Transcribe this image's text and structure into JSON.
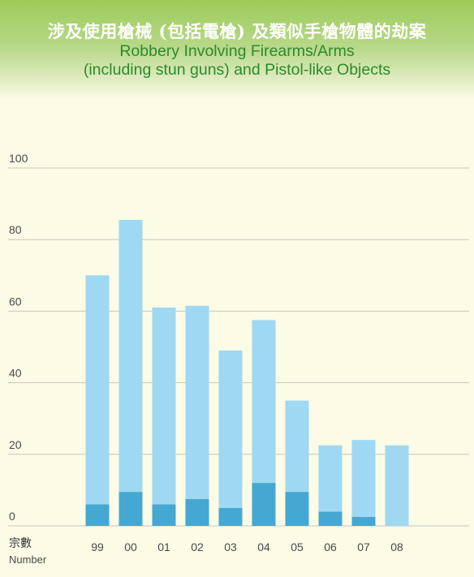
{
  "title_zh": "涉及使用槍械 (包括電槍) 及類似手槍物體的劫案",
  "title_en_line1": "Robbery Involving Firearms/Arms",
  "title_en_line2": "(including stun guns) and Pistol-like Objects",
  "colors": {
    "header_green": "#9ccb59",
    "title_en": "#2e8a2e",
    "background": "#fbfbe6",
    "bar_light": "#9fd8f2",
    "bar_dark": "#44a8d2",
    "gridline": "#c8c8bd"
  },
  "chart_data": {
    "type": "bar",
    "stacked": true,
    "categories": [
      "99",
      "00",
      "01",
      "02",
      "03",
      "04",
      "05",
      "06",
      "07",
      "08"
    ],
    "series": [
      {
        "values": [
          6,
          9.5,
          6,
          7.5,
          5,
          12,
          9.5,
          4,
          2.5,
          0
        ],
        "color": "#44a8d2"
      },
      {
        "values": [
          64,
          76,
          55,
          54,
          44,
          45.5,
          25.5,
          18.5,
          21.5,
          22.5
        ],
        "color": "#9fd8f2"
      }
    ],
    "totals": [
      70,
      85.5,
      61,
      61.5,
      49,
      57.5,
      35,
      22.5,
      24,
      22.5
    ],
    "ylim": [
      0,
      100
    ],
    "yticks": [
      "0",
      "20",
      "40",
      "60",
      "80",
      "100"
    ],
    "ylabel_zh": "宗數",
    "ylabel_en": "Number",
    "grid": true
  }
}
